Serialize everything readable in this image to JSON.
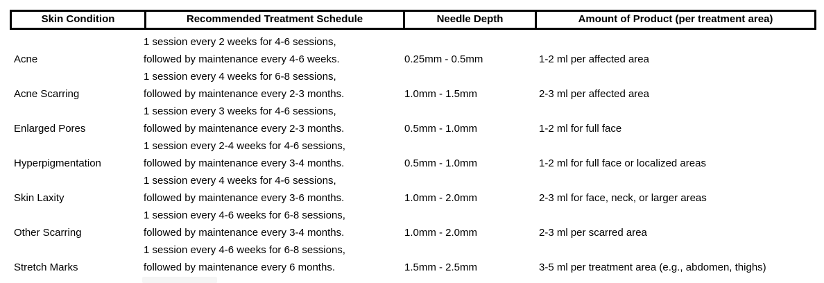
{
  "table": {
    "headers": {
      "skin_condition": "Skin Condition",
      "treatment_schedule": "Recommended Treatment Schedule",
      "needle_depth": "Needle Depth",
      "amount_of_product": "Amount of Product (per treatment area)"
    },
    "rows": [
      {
        "condition": "Acne",
        "schedule_line1": "1 session every 2 weeks for 4-6 sessions,",
        "schedule_line2": "followed by maintenance every 4-6 weeks.",
        "needle_depth": "0.25mm - 0.5mm",
        "amount": "1-2 ml per affected area"
      },
      {
        "condition": "Acne Scarring",
        "schedule_line1": "1 session every 4 weeks for 6-8 sessions,",
        "schedule_line2": "followed by maintenance every 2-3 months.",
        "needle_depth": "1.0mm - 1.5mm",
        "amount": "2-3 ml per affected area"
      },
      {
        "condition": "Enlarged Pores",
        "schedule_line1": "1 session every 3 weeks for 4-6 sessions,",
        "schedule_line2": "followed by maintenance every 2-3 months.",
        "needle_depth": "0.5mm - 1.0mm",
        "amount": "1-2 ml for full face"
      },
      {
        "condition": "Hyperpigmentation",
        "schedule_line1": "1 session every 2-4 weeks for 4-6 sessions,",
        "schedule_line2": "followed by maintenance every 3-4 months.",
        "needle_depth": "0.5mm - 1.0mm",
        "amount": "1-2 ml for full face or localized areas"
      },
      {
        "condition": "Skin Laxity",
        "schedule_line1": "1 session every 4 weeks for 4-6 sessions,",
        "schedule_line2": "followed by maintenance every 3-6 months.",
        "needle_depth": "1.0mm - 2.0mm",
        "amount": "2-3 ml for face, neck, or larger areas"
      },
      {
        "condition": "Other Scarring",
        "schedule_line1": "1 session every 4-6 weeks for 6-8 sessions,",
        "schedule_line2": "followed by maintenance every 3-4 months.",
        "needle_depth": "1.0mm - 2.0mm",
        "amount": "2-3 ml per scarred area"
      },
      {
        "condition": "Stretch Marks",
        "schedule_line1": "1 session every 4-6 weeks for 6-8 sessions,",
        "schedule_line2": "followed by maintenance every 6 months.",
        "needle_depth": "1.5mm - 2.5mm",
        "amount": "3-5 ml per treatment area (e.g., abdomen, thighs)"
      }
    ]
  }
}
